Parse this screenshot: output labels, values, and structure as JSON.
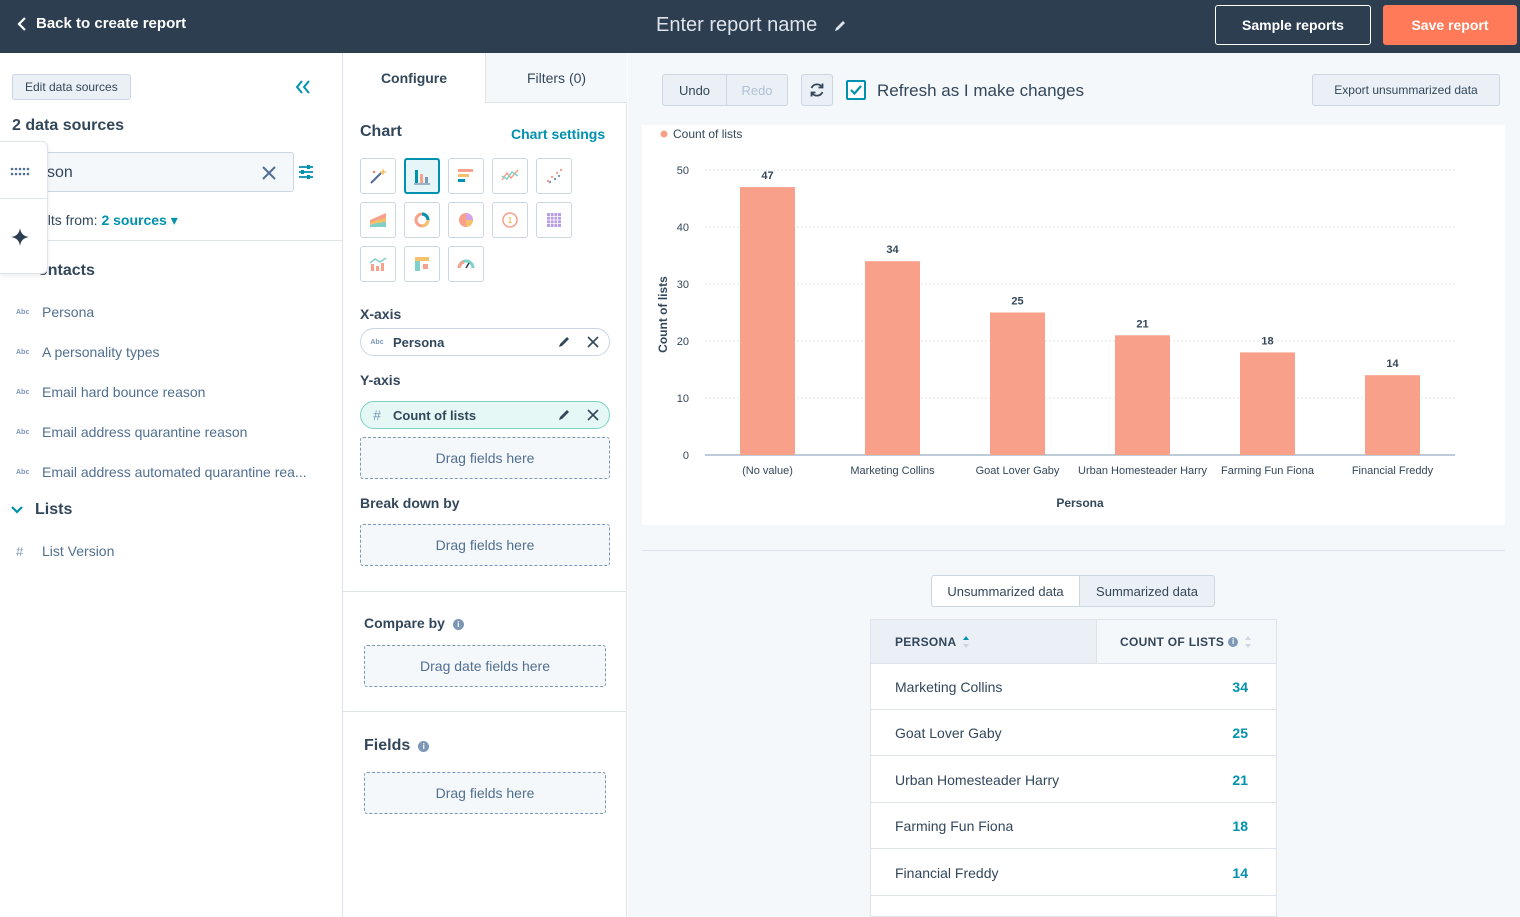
{
  "topbar": {
    "back_label": "Back to create report",
    "report_name": "Enter report name",
    "sample_label": "Sample reports",
    "save_label": "Save report"
  },
  "sidebar": {
    "edit_label": "Edit data sources",
    "ds_count": "2 data sources",
    "search_value": "son",
    "results_prefix": "ults from:",
    "results_link": "2 sources",
    "groups": [
      {
        "title": "ontacts",
        "fields": [
          {
            "type": "Abc",
            "label": "Persona"
          },
          {
            "type": "Abc",
            "label": "A personality types"
          },
          {
            "type": "Abc",
            "label": "Email hard bounce reason"
          },
          {
            "type": "Abc",
            "label": "Email address quarantine reason"
          },
          {
            "type": "Abc",
            "label": "Email address automated quarantine rea..."
          }
        ]
      },
      {
        "title": "Lists",
        "fields": [
          {
            "type": "#",
            "label": "List Version"
          }
        ]
      }
    ]
  },
  "config": {
    "tab_configure": "Configure",
    "tab_filters": "Filters (0)",
    "chart_title": "Chart",
    "chart_settings": "Chart settings",
    "xaxis_title": "X-axis",
    "xaxis_type": "Abc",
    "xaxis_field": "Persona",
    "yaxis_title": "Y-axis",
    "yaxis_type": "#",
    "yaxis_field": "Count of lists",
    "drag_fields": "Drag fields here",
    "breakdown_title": "Break down by",
    "compare_title": "Compare by",
    "drag_date": "Drag date fields here",
    "fields_title": "Fields"
  },
  "toolbar": {
    "undo": "Undo",
    "redo": "Redo",
    "refresh_label": "Refresh as I make changes",
    "refresh_checked": true,
    "export_label": "Export unsummarized data"
  },
  "chart_data": {
    "type": "bar",
    "legend": "Count of lists",
    "xlabel": "Persona",
    "ylabel": "Count of lists",
    "ylim": [
      0,
      50
    ],
    "yticks": [
      0,
      10,
      20,
      30,
      40,
      50
    ],
    "categories": [
      "(No value)",
      "Marketing Collins",
      "Goat Lover Gaby",
      "Urban Homesteader Harry",
      "Farming Fun Fiona",
      "Financial Freddy"
    ],
    "values": [
      47,
      34,
      25,
      21,
      18,
      14
    ],
    "color": "#f8a08a"
  },
  "table": {
    "seg_unsummarized": "Unsummarized data",
    "seg_summarized": "Summarized data",
    "col_persona": "PERSONA",
    "col_count": "COUNT OF LISTS",
    "rows": [
      {
        "name": "Marketing Collins",
        "value": "34"
      },
      {
        "name": "Goat Lover Gaby",
        "value": "25"
      },
      {
        "name": "Urban Homesteader Harry",
        "value": "21"
      },
      {
        "name": "Farming Fun Fiona",
        "value": "18"
      },
      {
        "name": "Financial Freddy",
        "value": "14"
      }
    ]
  },
  "colors": {
    "topbar": "#2d3e50",
    "accent": "#0091ae",
    "save": "#ff7a59",
    "bar": "#f8a08a"
  }
}
